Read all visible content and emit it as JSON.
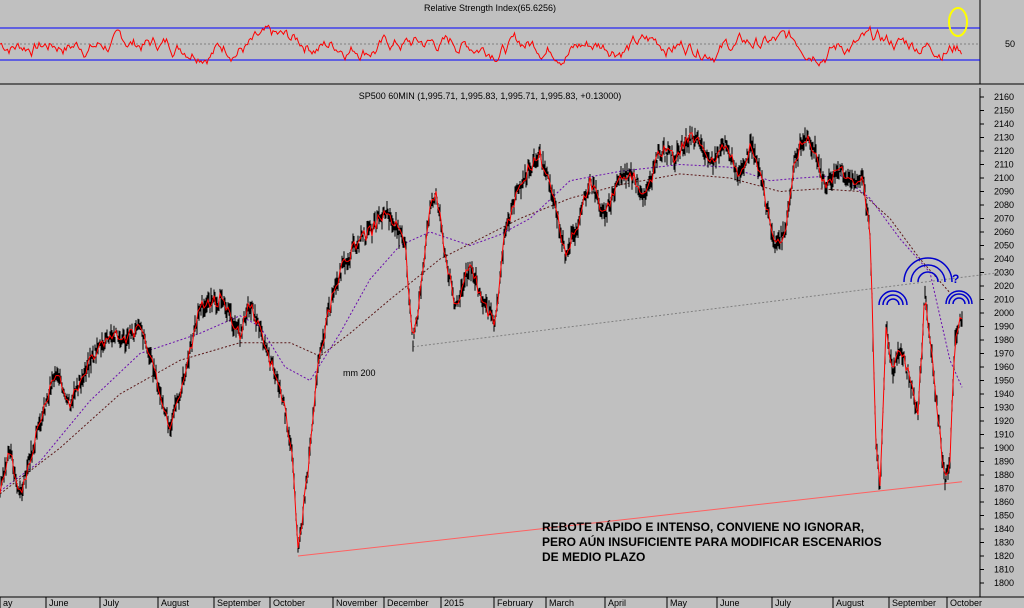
{
  "chart_data": [
    {
      "type": "line",
      "title": "Relative Strength Index(65.6256)",
      "y_ticks": [
        50
      ],
      "ylim": [
        0,
        100
      ],
      "overbought": 70,
      "oversold": 30,
      "series_color": "#ff0000",
      "band_color": "#0000ff",
      "highlight_color": "#ffff00"
    },
    {
      "type": "line",
      "title": "SP500 60MIN (1,995.71, 1,995.83, 1,995.71, 1,995.83, +0.13000)",
      "ylim": [
        1800,
        2160
      ],
      "y_ticks": [
        1800,
        1810,
        1820,
        1830,
        1840,
        1850,
        1860,
        1870,
        1880,
        1890,
        1900,
        1910,
        1920,
        1930,
        1940,
        1950,
        1960,
        1970,
        1980,
        1990,
        2000,
        2010,
        2020,
        2030,
        2040,
        2050,
        2060,
        2070,
        2080,
        2090,
        2100,
        2110,
        2120,
        2130,
        2140,
        2150,
        2160
      ],
      "x_labels": [
        {
          "label": "ay",
          "t": 0
        },
        {
          "label": "June",
          "t": 46
        },
        {
          "label": "July",
          "t": 100
        },
        {
          "label": "August",
          "t": 158
        },
        {
          "label": "September",
          "t": 214
        },
        {
          "label": "October",
          "t": 270
        },
        {
          "label": "November",
          "t": 333
        },
        {
          "label": "December",
          "t": 384
        },
        {
          "label": "2015",
          "t": 441
        },
        {
          "label": "February",
          "t": 494
        },
        {
          "label": "March",
          "t": 546
        },
        {
          "label": "April",
          "t": 605
        },
        {
          "label": "May",
          "t": 667
        },
        {
          "label": "June",
          "t": 717
        },
        {
          "label": "July",
          "t": 772
        },
        {
          "label": "August",
          "t": 833
        },
        {
          "label": "September",
          "t": 889
        },
        {
          "label": "October",
          "t": 947
        }
      ],
      "price": [
        [
          0,
          1868
        ],
        [
          10,
          1898
        ],
        [
          20,
          1865
        ],
        [
          35,
          1905
        ],
        [
          55,
          1955
        ],
        [
          70,
          1935
        ],
        [
          85,
          1955
        ],
        [
          95,
          1972
        ],
        [
          110,
          1985
        ],
        [
          125,
          1980
        ],
        [
          140,
          1990
        ],
        [
          155,
          1955
        ],
        [
          170,
          1915
        ],
        [
          185,
          1955
        ],
        [
          200,
          2005
        ],
        [
          220,
          2010
        ],
        [
          240,
          1985
        ],
        [
          250,
          2008
        ],
        [
          265,
          1975
        ],
        [
          280,
          1945
        ],
        [
          292,
          1900
        ],
        [
          298,
          1822
        ],
        [
          308,
          1885
        ],
        [
          318,
          1960
        ],
        [
          328,
          2000
        ],
        [
          340,
          2030
        ],
        [
          355,
          2050
        ],
        [
          370,
          2060
        ],
        [
          385,
          2075
        ],
        [
          395,
          2065
        ],
        [
          405,
          2050
        ],
        [
          413,
          1980
        ],
        [
          418,
          2000
        ],
        [
          428,
          2070
        ],
        [
          436,
          2090
        ],
        [
          445,
          2045
        ],
        [
          455,
          2005
        ],
        [
          470,
          2035
        ],
        [
          485,
          2005
        ],
        [
          495,
          1990
        ],
        [
          505,
          2060
        ],
        [
          515,
          2085
        ],
        [
          528,
          2105
        ],
        [
          540,
          2118
        ],
        [
          555,
          2080
        ],
        [
          565,
          2045
        ],
        [
          578,
          2065
        ],
        [
          590,
          2100
        ],
        [
          605,
          2070
        ],
        [
          618,
          2100
        ],
        [
          630,
          2105
        ],
        [
          645,
          2085
        ],
        [
          660,
          2120
        ],
        [
          675,
          2115
        ],
        [
          690,
          2130
        ],
        [
          700,
          2125
        ],
        [
          712,
          2110
        ],
        [
          725,
          2125
        ],
        [
          740,
          2100
        ],
        [
          752,
          2125
        ],
        [
          762,
          2095
        ],
        [
          775,
          2050
        ],
        [
          785,
          2060
        ],
        [
          795,
          2115
        ],
        [
          805,
          2130
        ],
        [
          815,
          2120
        ],
        [
          825,
          2095
        ],
        [
          840,
          2108
        ],
        [
          855,
          2095
        ],
        [
          863,
          2100
        ],
        [
          870,
          2060
        ],
        [
          876,
          1905
        ],
        [
          880,
          1868
        ],
        [
          886,
          1990
        ],
        [
          893,
          1955
        ],
        [
          900,
          1975
        ],
        [
          910,
          1950
        ],
        [
          918,
          1925
        ],
        [
          925,
          2015
        ],
        [
          932,
          1965
        ],
        [
          940,
          1910
        ],
        [
          945,
          1875
        ],
        [
          950,
          1895
        ],
        [
          955,
          1985
        ],
        [
          962,
          1996
        ]
      ],
      "ma_short": [
        [
          0,
          1868
        ],
        [
          40,
          1890
        ],
        [
          90,
          1935
        ],
        [
          140,
          1970
        ],
        [
          200,
          1985
        ],
        [
          240,
          1998
        ],
        [
          260,
          1990
        ],
        [
          285,
          1960
        ],
        [
          310,
          1950
        ],
        [
          340,
          1985
        ],
        [
          370,
          2025
        ],
        [
          400,
          2050
        ],
        [
          430,
          2060
        ],
        [
          470,
          2050
        ],
        [
          500,
          2058
        ],
        [
          530,
          2070
        ],
        [
          570,
          2098
        ],
        [
          620,
          2105
        ],
        [
          680,
          2110
        ],
        [
          730,
          2108
        ],
        [
          770,
          2098
        ],
        [
          800,
          2100
        ],
        [
          840,
          2102
        ],
        [
          870,
          2085
        ],
        [
          900,
          2055
        ],
        [
          930,
          2030
        ],
        [
          950,
          1965
        ],
        [
          962,
          1945
        ]
      ],
      "ma_200": [
        [
          0,
          1866
        ],
        [
          60,
          1900
        ],
        [
          120,
          1940
        ],
        [
          180,
          1965
        ],
        [
          240,
          1978
        ],
        [
          290,
          1978
        ],
        [
          320,
          1968
        ],
        [
          350,
          1985
        ],
        [
          390,
          2010
        ],
        [
          440,
          2040
        ],
        [
          480,
          2055
        ],
        [
          520,
          2070
        ],
        [
          570,
          2085
        ],
        [
          620,
          2095
        ],
        [
          680,
          2103
        ],
        [
          730,
          2100
        ],
        [
          780,
          2090
        ],
        [
          820,
          2092
        ],
        [
          860,
          2090
        ],
        [
          890,
          2070
        ],
        [
          920,
          2040
        ],
        [
          950,
          2015
        ]
      ],
      "ma_200_label": "mm 200",
      "support_line": [
        [
          298,
          1820
        ],
        [
          962,
          1875
        ]
      ],
      "rising_line": [
        [
          413,
          1975
        ],
        [
          1000,
          2030
        ]
      ],
      "question_mark": "?",
      "annotation": [
        "REBOTE RÁPIDO E INTENSO, CONVIENE NO IGNORAR,",
        "PERO AÚN INSUFICIENTE PARA MODIFICAR ESCENARIOS",
        "DE MEDIO PLAZO"
      ],
      "price_color": "#000000",
      "price_accent_color": "#ff0000",
      "ma_short_color": "#6a0dad",
      "ma_200_color": "#5c1a1a",
      "support_color": "#ff6060",
      "arc_color": "#0000cc"
    }
  ]
}
